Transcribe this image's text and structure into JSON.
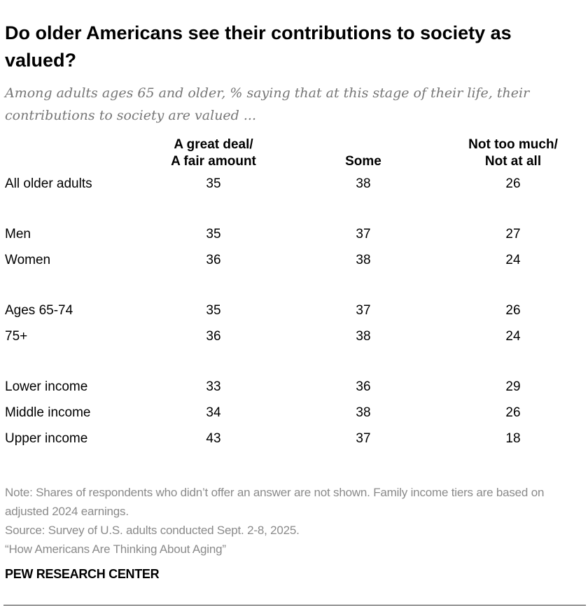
{
  "title": "Do older Americans see their contributions to society as valued?",
  "subtitle": "Among adults ages 65 and older, % saying that at this stage of their life, their contributions to society are valued ...",
  "chart_data": {
    "type": "table",
    "columns": [
      {
        "line1": "A great deal/",
        "line2": "A fair amount"
      },
      {
        "line1": "",
        "line2": "Some"
      },
      {
        "line1": "Not too much/",
        "line2": "Not at all"
      }
    ],
    "groups": [
      [
        {
          "label": "All older adults",
          "values": [
            "35",
            "38",
            "26"
          ]
        }
      ],
      [
        {
          "label": "Men",
          "values": [
            "35",
            "37",
            "27"
          ]
        },
        {
          "label": "Women",
          "values": [
            "36",
            "38",
            "24"
          ]
        }
      ],
      [
        {
          "label": "Ages 65-74",
          "values": [
            "35",
            "37",
            "26"
          ]
        },
        {
          "label": "75+",
          "values": [
            "36",
            "38",
            "24"
          ]
        }
      ],
      [
        {
          "label": "Lower income",
          "values": [
            "33",
            "36",
            "29"
          ]
        },
        {
          "label": "Middle income",
          "values": [
            "34",
            "38",
            "26"
          ]
        },
        {
          "label": "Upper income",
          "values": [
            "43",
            "37",
            "18"
          ]
        }
      ]
    ]
  },
  "notes": {
    "note": "Note: Shares of respondents who didn’t offer an answer are not shown. Family income tiers are based on adjusted 2024 earnings.",
    "source": "Source: Survey of U.S. adults conducted Sept. 2-8, 2025.",
    "report": "“How Americans Are Thinking About Aging”"
  },
  "logo": "PEW RESEARCH CENTER"
}
